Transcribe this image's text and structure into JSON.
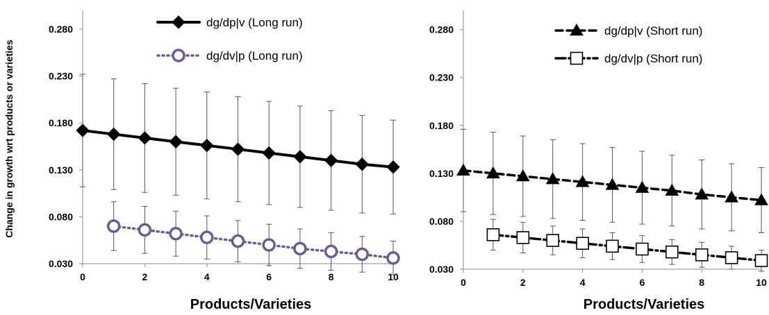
{
  "chart_data": [
    {
      "type": "line",
      "xlabel": "Products/Varieties",
      "ylabel": "Change in growth wrt products or varieties",
      "xlim": [
        0,
        10
      ],
      "ylim": [
        0.03,
        0.3
      ],
      "x_ticks": [
        "0",
        "2",
        "4",
        "6",
        "8",
        "10"
      ],
      "y_ticks": [
        "0.030",
        "0.080",
        "0.130",
        "0.180",
        "0.230",
        "0.280"
      ],
      "grid": false,
      "legend_position": "top-center",
      "series": [
        {
          "name": "dg/dp|v  (Long run)",
          "marker": "filled-diamond",
          "line_style": "solid",
          "color": "#000000",
          "x": [
            0,
            1,
            2,
            3,
            4,
            5,
            6,
            7,
            8,
            9,
            10
          ],
          "values": [
            0.172,
            0.168,
            0.164,
            0.16,
            0.156,
            0.152,
            0.148,
            0.144,
            0.14,
            0.136,
            0.133
          ],
          "error": [
            0.06,
            0.059,
            0.058,
            0.057,
            0.057,
            0.056,
            0.055,
            0.054,
            0.053,
            0.052,
            0.05
          ]
        },
        {
          "name": "dg/dv|p  (Long run)",
          "marker": "open-circle",
          "line_style": "dotted",
          "color": "#6b5a96",
          "x": [
            1,
            2,
            3,
            4,
            5,
            6,
            7,
            8,
            9,
            10
          ],
          "values": [
            0.07,
            0.066,
            0.062,
            0.058,
            0.054,
            0.05,
            0.046,
            0.043,
            0.04,
            0.036
          ],
          "error": [
            0.026,
            0.025,
            0.024,
            0.023,
            0.022,
            0.022,
            0.021,
            0.02,
            0.019,
            0.018
          ]
        }
      ]
    },
    {
      "type": "line",
      "xlabel": "Products/Varieties",
      "ylabel": "",
      "xlim": [
        0,
        10
      ],
      "ylim": [
        0.03,
        0.3
      ],
      "x_ticks": [
        "0",
        "2",
        "4",
        "6",
        "8",
        "10"
      ],
      "y_ticks": [
        "0.030",
        "0.080",
        "0.130",
        "0.180",
        "0.230",
        "0.280"
      ],
      "grid": false,
      "legend_position": "top-center",
      "series": [
        {
          "name": "dg/dp|v  (Short run)",
          "marker": "filled-triangle",
          "line_style": "dashed",
          "color": "#000000",
          "x": [
            0,
            1,
            2,
            3,
            4,
            5,
            6,
            7,
            8,
            9,
            10
          ],
          "values": [
            0.133,
            0.13,
            0.127,
            0.124,
            0.121,
            0.118,
            0.115,
            0.112,
            0.108,
            0.105,
            0.102
          ],
          "error": [
            0.043,
            0.043,
            0.042,
            0.041,
            0.04,
            0.039,
            0.038,
            0.037,
            0.036,
            0.035,
            0.034
          ]
        },
        {
          "name": "dg/dv|p  (Short run)",
          "marker": "open-square",
          "line_style": "dash-dot",
          "color": "#000000",
          "x": [
            1,
            2,
            3,
            4,
            5,
            6,
            7,
            8,
            9,
            10
          ],
          "values": [
            0.066,
            0.063,
            0.06,
            0.057,
            0.054,
            0.051,
            0.048,
            0.045,
            0.042,
            0.039
          ],
          "error": [
            0.016,
            0.016,
            0.015,
            0.015,
            0.014,
            0.014,
            0.013,
            0.013,
            0.012,
            0.011
          ]
        }
      ]
    }
  ]
}
